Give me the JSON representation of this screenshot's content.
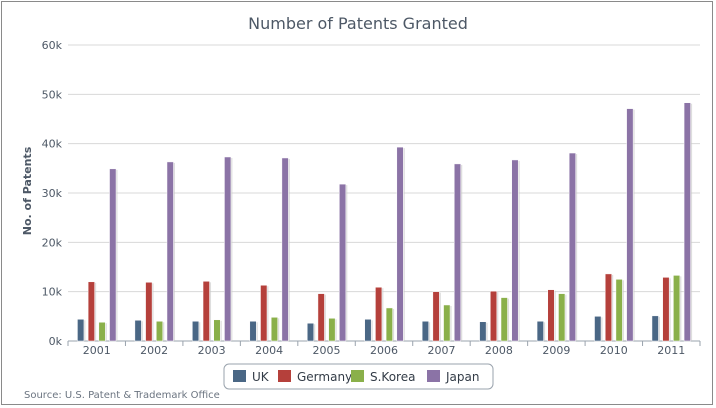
{
  "chart_data": {
    "type": "bar",
    "title": "Number of Patents Granted",
    "xlabel": "",
    "ylabel": "No. of Patents",
    "categories": [
      "2001",
      "2002",
      "2003",
      "2004",
      "2005",
      "2006",
      "2007",
      "2008",
      "2009",
      "2010",
      "2011"
    ],
    "ylim": [
      0,
      60000
    ],
    "yticks": [
      0,
      10000,
      20000,
      30000,
      40000,
      50000,
      60000
    ],
    "ytick_labels": [
      "0k",
      "10k",
      "20k",
      "30k",
      "40k",
      "50k",
      "60k"
    ],
    "grid": true,
    "legend_position": "bottom",
    "series": [
      {
        "name": "UK",
        "color": "#4a6785",
        "values": [
          4400,
          4200,
          4000,
          4000,
          3600,
          4400,
          4000,
          3900,
          4000,
          5000,
          5100
        ]
      },
      {
        "name": "Germany",
        "color": "#b5403b",
        "values": [
          12000,
          11900,
          12100,
          11300,
          9600,
          10900,
          10000,
          10100,
          10400,
          13600,
          12900
        ]
      },
      {
        "name": "S.Korea",
        "color": "#8ab04a",
        "values": [
          3800,
          4000,
          4300,
          4800,
          4600,
          6700,
          7300,
          8800,
          9600,
          12500,
          13300
        ]
      },
      {
        "name": "Japan",
        "color": "#8b73a6",
        "values": [
          34900,
          36300,
          37300,
          37100,
          31800,
          39300,
          35900,
          36700,
          38100,
          47100,
          48300
        ]
      }
    ],
    "source": "Source: U.S. Patent & Trademark Office"
  }
}
